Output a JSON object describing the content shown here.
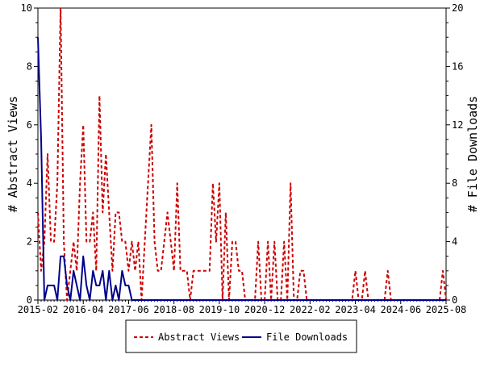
{
  "chart_data": {
    "type": "line",
    "title": "",
    "xlabel": "",
    "ylabel": "# Abstract Views",
    "y2label": "# File Downloads",
    "ylim": [
      0,
      10
    ],
    "y2lim": [
      0,
      20
    ],
    "yticks": [
      "0",
      "2",
      "4",
      "6",
      "8",
      "10"
    ],
    "y2ticks": [
      "0",
      "4",
      "8",
      "12",
      "16",
      "20"
    ],
    "xticks": [
      "2015-02",
      "2016-04",
      "2017-06",
      "2018-08",
      "2019-10",
      "2020-12",
      "2022-02",
      "2023-04",
      "2024-06",
      "2025-08"
    ],
    "grid": false,
    "legend": "bottom",
    "series": [
      {
        "name": "Abstract Views",
        "axis": "left",
        "color": "#cc0000",
        "style": "dashed",
        "x": [
          "2015-02",
          "2015-03",
          "2015-04",
          "2015-05",
          "2015-06",
          "2015-07",
          "2015-08",
          "2015-09",
          "2015-10",
          "2015-11",
          "2015-12",
          "2016-01",
          "2016-02",
          "2016-03",
          "2016-04",
          "2016-05",
          "2016-06",
          "2016-07",
          "2016-08",
          "2016-09",
          "2016-10",
          "2016-11",
          "2016-12",
          "2017-01",
          "2017-02",
          "2017-03",
          "2017-04",
          "2017-05",
          "2017-06",
          "2017-07",
          "2017-08",
          "2017-09",
          "2017-10",
          "2017-11",
          "2017-12",
          "2018-01",
          "2018-02",
          "2018-03",
          "2018-04",
          "2018-05",
          "2018-06",
          "2018-07",
          "2018-08",
          "2018-09",
          "2018-10",
          "2018-11",
          "2018-12",
          "2019-01",
          "2019-02",
          "2019-03",
          "2019-04",
          "2019-05",
          "2019-06",
          "2019-07",
          "2019-08",
          "2019-09",
          "2019-10",
          "2019-11",
          "2019-12",
          "2020-01",
          "2020-02",
          "2020-03",
          "2020-04",
          "2020-05",
          "2020-06",
          "2020-07",
          "2020-08",
          "2020-09",
          "2020-10",
          "2020-11",
          "2020-12",
          "2021-01",
          "2021-02",
          "2021-03",
          "2021-04",
          "2021-05",
          "2021-06",
          "2021-07",
          "2021-08",
          "2021-09",
          "2021-10",
          "2021-11",
          "2021-12",
          "2022-01",
          "2022-02",
          "2023-01",
          "2023-02",
          "2023-03",
          "2023-04",
          "2023-05",
          "2023-06",
          "2023-07",
          "2023-08",
          "2024-01",
          "2024-02",
          "2024-03",
          "2025-05",
          "2025-06",
          "2025-07",
          "2025-08"
        ],
        "y": [
          3,
          1,
          2,
          5,
          2,
          2,
          4,
          10,
          2,
          0,
          1,
          2,
          1,
          4,
          6,
          2,
          2,
          3,
          1,
          7,
          3,
          5,
          3,
          1,
          3,
          3,
          2,
          2,
          1,
          2,
          1,
          2,
          0,
          2,
          4,
          6,
          2,
          1,
          1,
          2,
          3,
          2,
          1,
          4,
          1,
          1,
          1,
          0,
          1,
          1,
          1,
          1,
          1,
          1,
          4,
          2,
          4,
          0,
          3,
          0,
          2,
          2,
          1,
          1,
          0,
          0,
          0,
          0,
          2,
          0,
          0,
          2,
          0,
          2,
          0,
          0,
          2,
          0,
          4,
          0,
          0,
          1,
          1,
          0,
          0,
          0,
          0,
          0,
          1,
          0,
          0,
          1,
          0,
          0,
          1,
          0,
          0,
          0,
          1,
          0
        ]
      },
      {
        "name": "File Downloads",
        "axis": "right",
        "color": "#00008b",
        "style": "solid",
        "x": [
          "2015-02",
          "2015-03",
          "2015-04",
          "2015-05",
          "2015-06",
          "2015-07",
          "2015-08",
          "2015-09",
          "2015-10",
          "2015-11",
          "2015-12",
          "2016-01",
          "2016-02",
          "2016-03",
          "2016-04",
          "2016-05",
          "2016-06",
          "2016-07",
          "2016-08",
          "2016-09",
          "2016-10",
          "2016-11",
          "2016-12",
          "2017-01",
          "2017-02",
          "2017-03",
          "2017-04",
          "2017-05",
          "2017-06",
          "2017-07",
          "2025-08"
        ],
        "y": [
          18,
          11,
          0,
          1,
          1,
          1,
          0,
          3,
          3,
          1,
          0,
          2,
          1,
          0,
          3,
          1,
          0,
          2,
          1,
          1,
          2,
          0,
          2,
          0,
          1,
          0,
          2,
          1,
          1,
          0,
          0
        ]
      }
    ]
  }
}
